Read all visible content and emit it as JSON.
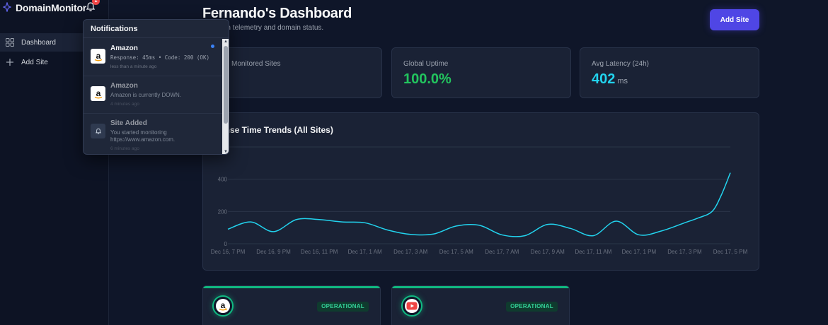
{
  "app": {
    "name": "DomainMonitor",
    "notification_count": "1"
  },
  "sidebar": {
    "items": [
      {
        "label": "Dashboard",
        "icon": "grid-icon",
        "active": true
      },
      {
        "label": "Add Site",
        "icon": "plus-icon",
        "active": false
      }
    ]
  },
  "header": {
    "title": "Fernando's Dashboard",
    "subtitle": "e system telemetry and domain status.",
    "add_site_label": "Add Site"
  },
  "stats": [
    {
      "label": "Monitored Sites",
      "value": "",
      "unit": "",
      "color": "#e5e7eb"
    },
    {
      "label": "Global Uptime",
      "value": "100.0%",
      "unit": "",
      "color": "#22c55e"
    },
    {
      "label": "Avg Latency (24h)",
      "value": "402",
      "unit": "ms",
      "color": "#22d3ee"
    }
  ],
  "chart": {
    "title": "ponse Time Trends (All Sites)"
  },
  "chart_data": {
    "type": "line",
    "title": "Response Time Trends (All Sites)",
    "xlabel": "",
    "ylabel": "",
    "ylim": [
      0,
      600
    ],
    "yticks": [
      0,
      200,
      400
    ],
    "x_ticks": [
      "Dec 16, 7 PM",
      "Dec 16, 9 PM",
      "Dec 16, 11 PM",
      "Dec 17, 1 AM",
      "Dec 17, 3 AM",
      "Dec 17, 5 AM",
      "Dec 17, 7 AM",
      "Dec 17, 9 AM",
      "Dec 17, 11 AM",
      "Dec 17, 1 PM",
      "Dec 17, 3 PM",
      "Dec 17, 5 PM"
    ],
    "grid": true,
    "series": [
      {
        "color": "#22d3ee",
        "x": [
          0,
          0.5,
          1,
          1.5,
          2,
          2.5,
          3,
          3.5,
          4,
          4.5,
          5,
          5.5,
          6,
          6.5,
          7,
          7.5,
          8,
          8.5,
          9,
          9.5,
          10,
          10.3,
          10.6,
          10.8,
          11
        ],
        "values": [
          90,
          135,
          75,
          150,
          150,
          135,
          130,
          85,
          58,
          60,
          110,
          115,
          55,
          50,
          120,
          95,
          50,
          140,
          55,
          80,
          130,
          160,
          200,
          300,
          440
        ]
      }
    ]
  },
  "sites": [
    {
      "name": "amazon",
      "icon": "amazon-icon",
      "status": "OPERATIONAL"
    },
    {
      "name": "youtube",
      "icon": "youtube-icon",
      "status": "OPERATIONAL"
    }
  ],
  "notifications": {
    "title": "Notifications",
    "items": [
      {
        "title": "Amazon",
        "message": "Response: 45ms • Code: 200 (OK)",
        "time": "less than a minute ago",
        "icon": "amazon-icon",
        "unread": true,
        "mono": true
      },
      {
        "title": "Amazon",
        "message": "Amazon is currently DOWN.",
        "time": "4 minutes ago",
        "icon": "amazon-icon",
        "unread": false,
        "mono": false
      },
      {
        "title": "Site Added",
        "message": "You started monitoring https://www.amazon.com.",
        "time": "6 minutes ago",
        "icon": "bell-icon",
        "unread": false,
        "mono": false
      }
    ]
  }
}
